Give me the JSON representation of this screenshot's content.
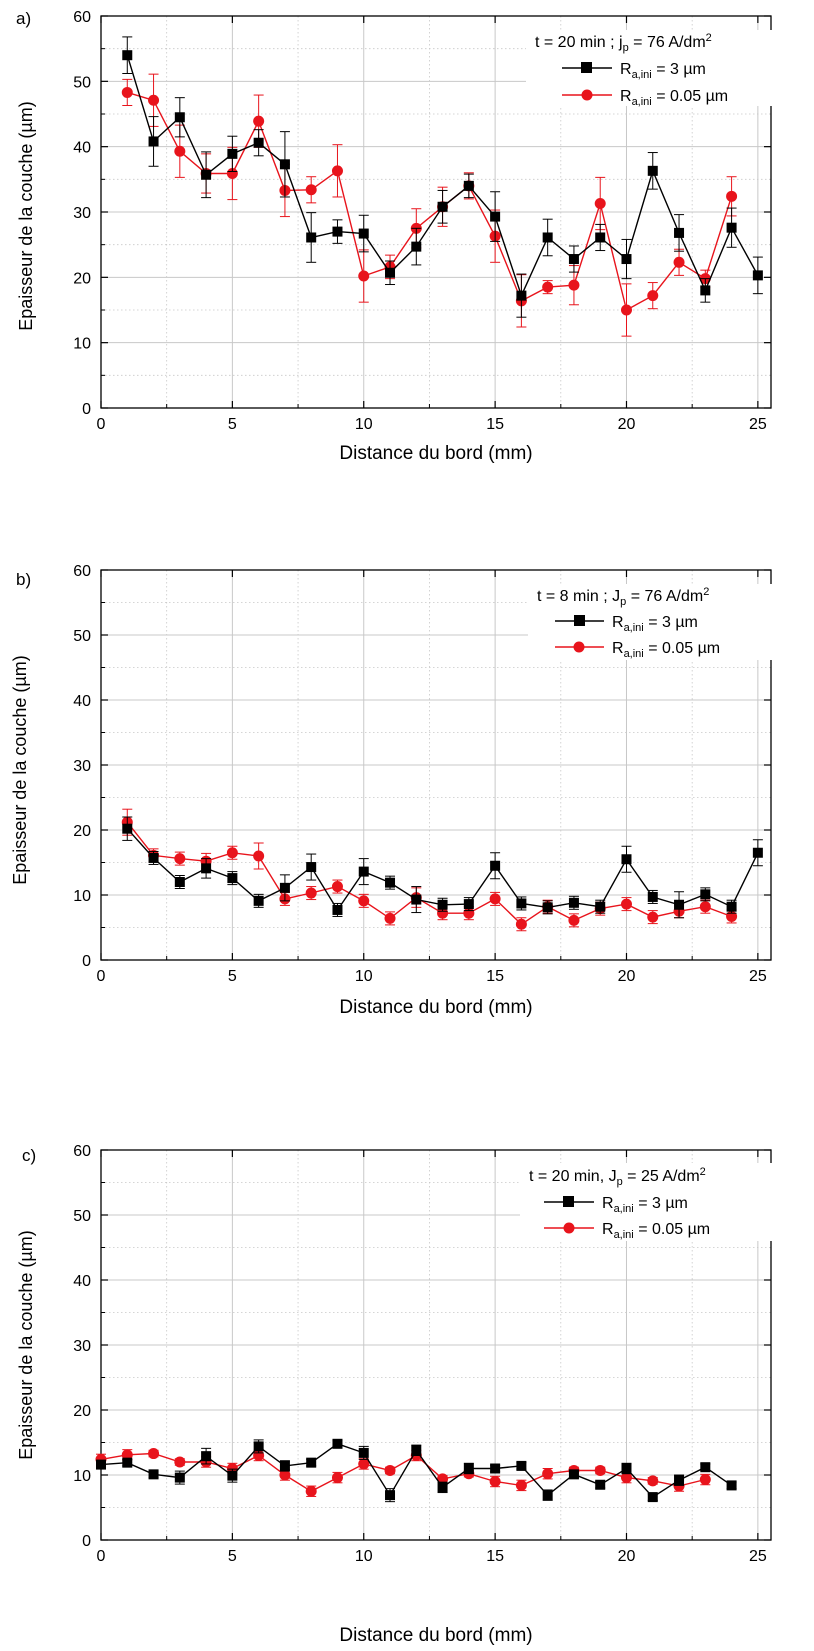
{
  "figure": {
    "panels": [
      {
        "letter": "a)",
        "xlabel": "Distance du bord (mm)",
        "ylabel": "Epaisseur de la couche (µm)",
        "condition": {
          "main": "t = 20 min ; j",
          "sub": "p",
          "rest": " = 76 A/dm",
          "sup": "2"
        }
      },
      {
        "letter": "b)",
        "xlabel": "Distance du bord (mm)",
        "ylabel": "Epaisseur de la couche (µm)",
        "condition": {
          "main": "t = 8 min ; J",
          "sub": "p",
          "rest": " = 76 A/dm",
          "sup": "2"
        }
      },
      {
        "letter": "c)",
        "xlabel": "Distance du bord (mm)",
        "ylabel": "Epaisseur de la couche (µm)",
        "condition": {
          "main": "t = 20 min, J",
          "sub": "p",
          "rest": " = 25 A/dm",
          "sup": "2"
        }
      }
    ],
    "legend": [
      {
        "main": "R",
        "sub": "a,ini",
        "rest": " = 3 µm"
      },
      {
        "main": "R",
        "sub": "a,ini",
        "rest": " = 0.05 µm"
      }
    ]
  },
  "colors": {
    "series_black": "#000000",
    "series_red": "#e8141c",
    "grid": "#c8c8c8"
  },
  "chart_data": [
    {
      "type": "line",
      "xlim": [
        0,
        25.5
      ],
      "ylim": [
        0,
        60
      ],
      "xticks": [
        0,
        5,
        10,
        15,
        20,
        25
      ],
      "yticks": [
        0,
        10,
        20,
        30,
        40,
        50,
        60
      ],
      "grid": true,
      "legend_position": "top-right",
      "series": [
        {
          "marker": "square",
          "color": "#000000",
          "x": [
            1,
            2,
            3,
            4,
            5,
            6,
            7,
            8,
            9,
            10,
            11,
            12,
            13,
            14,
            15,
            16,
            17,
            18,
            19,
            20,
            21,
            22,
            23,
            24,
            25
          ],
          "y": [
            54,
            40.8,
            44.5,
            35.7,
            38.9,
            40.6,
            37.3,
            26.1,
            27,
            26.7,
            20.7,
            24.7,
            30.8,
            34,
            29.3,
            17.2,
            26.1,
            22.8,
            26.1,
            22.8,
            36.3,
            26.8,
            18,
            27.6,
            20.3
          ],
          "err": [
            2.8,
            3.8,
            3.0,
            3.5,
            2.7,
            2.0,
            5.0,
            3.8,
            1.8,
            2.8,
            1.8,
            2.8,
            2.5,
            1.8,
            3.8,
            3.3,
            2.8,
            2.0,
            2.0,
            3.0,
            2.8,
            2.8,
            1.8,
            3.0,
            2.8
          ]
        },
        {
          "marker": "circle",
          "color": "#e8141c",
          "x": [
            1,
            2,
            3,
            4,
            5,
            6,
            7,
            8,
            9,
            10,
            11,
            12,
            13,
            14,
            15,
            16,
            17,
            18,
            19,
            20,
            21,
            22,
            23,
            24
          ],
          "y": [
            48.3,
            47.1,
            39.3,
            35.9,
            35.9,
            43.9,
            33.3,
            33.4,
            36.3,
            20.2,
            21.6,
            27.5,
            30.8,
            34,
            26.3,
            16.4,
            18.5,
            18.8,
            31.3,
            15,
            17.2,
            22.3,
            19.8,
            32.4
          ],
          "err": [
            2.0,
            4.0,
            4.0,
            3.0,
            4.0,
            4.0,
            4.0,
            2.0,
            4.0,
            4.0,
            1.8,
            3.0,
            3.0,
            2.0,
            4.0,
            4.0,
            1.0,
            3.0,
            4.0,
            4.0,
            2.0,
            2.0,
            1.3,
            3.0
          ]
        }
      ]
    },
    {
      "type": "line",
      "xlim": [
        0,
        25.5
      ],
      "ylim": [
        0,
        60
      ],
      "xticks": [
        0,
        5,
        10,
        15,
        20,
        25
      ],
      "yticks": [
        0,
        10,
        20,
        30,
        40,
        50,
        60
      ],
      "grid": true,
      "legend_position": "top-right",
      "series": [
        {
          "marker": "square",
          "color": "#000000",
          "x": [
            1,
            2,
            3,
            4,
            5,
            6,
            7,
            8,
            9,
            10,
            11,
            12,
            13,
            14,
            15,
            16,
            17,
            18,
            19,
            20,
            21,
            22,
            23,
            24,
            25
          ],
          "y": [
            20.2,
            15.7,
            12,
            14.1,
            12.6,
            9.1,
            11.1,
            14.3,
            7.7,
            13.6,
            11.9,
            9.3,
            8.5,
            8.6,
            14.5,
            8.7,
            8.1,
            8.8,
            8.2,
            15.5,
            9.7,
            8.5,
            10.1,
            8.2,
            16.5
          ],
          "err": [
            1.8,
            1.0,
            1.0,
            1.5,
            1.0,
            1.0,
            2.0,
            2.0,
            1.0,
            2.0,
            1.0,
            2.0,
            1.0,
            1.0,
            2.0,
            1.0,
            1.0,
            1.0,
            1.0,
            2.0,
            1.0,
            2.0,
            1.0,
            1.0,
            2.0
          ]
        },
        {
          "marker": "circle",
          "color": "#e8141c",
          "x": [
            1,
            2,
            3,
            4,
            5,
            6,
            7,
            8,
            9,
            10,
            11,
            12,
            13,
            14,
            15,
            16,
            17,
            18,
            19,
            20,
            21,
            22,
            23,
            24
          ],
          "y": [
            21.2,
            16.1,
            15.6,
            15.2,
            16.5,
            16,
            9.4,
            10.3,
            11.3,
            9.1,
            6.4,
            9.6,
            7.2,
            7.2,
            9.4,
            5.5,
            8.2,
            6.1,
            7.9,
            8.6,
            6.6,
            7.5,
            8.2,
            6.7
          ],
          "err": [
            2.0,
            1.0,
            1.0,
            1.2,
            1.0,
            2.0,
            1.0,
            1.0,
            1.0,
            1.0,
            1.0,
            1.5,
            1.0,
            1.0,
            1.0,
            1.0,
            1.0,
            1.0,
            1.0,
            1.0,
            1.0,
            1.0,
            1.0,
            1.0
          ]
        }
      ]
    },
    {
      "type": "line",
      "xlim": [
        0,
        25.5
      ],
      "ylim": [
        0,
        60
      ],
      "xticks": [
        0,
        5,
        10,
        15,
        20,
        25
      ],
      "yticks": [
        0,
        10,
        20,
        30,
        40,
        50,
        60
      ],
      "grid": true,
      "legend_position": "top-right",
      "series": [
        {
          "marker": "square",
          "color": "#000000",
          "x": [
            0,
            1,
            2,
            3,
            4,
            5,
            6,
            7,
            8,
            9,
            10,
            11,
            12,
            13,
            14,
            15,
            16,
            17,
            18,
            19,
            20,
            21,
            22,
            23,
            24
          ],
          "y": [
            11.6,
            11.9,
            10.1,
            9.6,
            12.9,
            9.9,
            14.4,
            11.4,
            11.9,
            14.8,
            13.4,
            6.9,
            13.8,
            8.1,
            11,
            11,
            11.4,
            6.9,
            10.1,
            8.5,
            11,
            6.6,
            9.2,
            11.2,
            8.4
          ],
          "err": [
            0.5,
            0.5,
            0.5,
            1.0,
            1.2,
            1.0,
            1.0,
            0.8,
            0.5,
            0.5,
            1.0,
            1.0,
            0.8,
            0.8,
            0.8,
            0.5,
            0.5,
            0.8,
            0.5,
            0.5,
            0.8,
            0.5,
            0.8,
            0.5,
            0.5
          ]
        },
        {
          "marker": "circle",
          "color": "#e8141c",
          "x": [
            0,
            1,
            2,
            3,
            4,
            5,
            6,
            7,
            8,
            9,
            10,
            11,
            12,
            13,
            14,
            15,
            16,
            17,
            18,
            19,
            20,
            21,
            22,
            23
          ],
          "y": [
            12.4,
            13.1,
            13.3,
            12,
            12,
            11,
            13,
            10,
            7.5,
            9.6,
            11.7,
            10.7,
            13,
            9.4,
            10.2,
            9,
            8.4,
            10.2,
            10.7,
            10.7,
            9.6,
            9.1,
            8.3,
            9.3
          ],
          "err": [
            0.8,
            0.8,
            0.5,
            0.5,
            0.8,
            0.8,
            0.8,
            0.8,
            0.8,
            0.8,
            0.8,
            0.5,
            0.8,
            0.5,
            0.5,
            0.8,
            0.8,
            0.8,
            0.5,
            0.5,
            0.8,
            0.5,
            0.8,
            0.8
          ]
        }
      ]
    }
  ]
}
